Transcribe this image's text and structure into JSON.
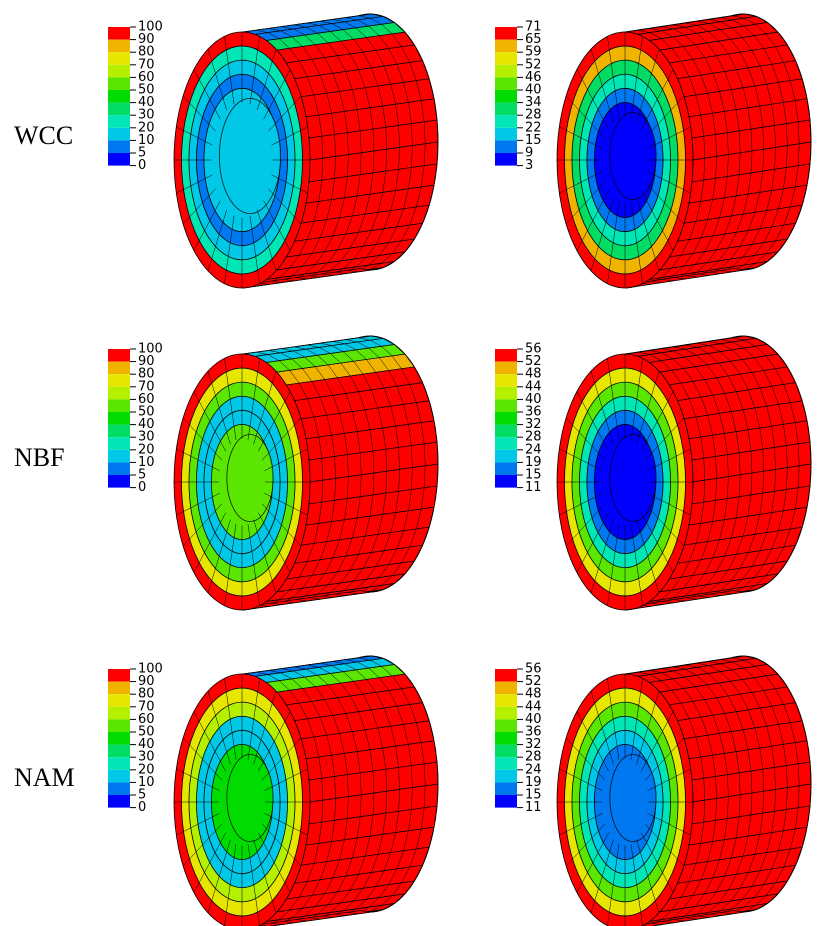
{
  "panels": [
    {
      "label": "WCC",
      "legends": [
        {
          "ticks": [
            100,
            90,
            80,
            70,
            60,
            50,
            40,
            30,
            20,
            10,
            5,
            0
          ]
        },
        {
          "ticks": [
            71,
            65,
            59,
            52,
            46,
            40,
            34,
            28,
            22,
            15,
            9,
            3
          ]
        }
      ]
    },
    {
      "label": "NBF",
      "legends": [
        {
          "ticks": [
            100,
            90,
            80,
            70,
            60,
            50,
            40,
            30,
            20,
            10,
            5,
            0
          ]
        },
        {
          "ticks": [
            56,
            52,
            48,
            44,
            40,
            36,
            32,
            28,
            24,
            19,
            15,
            11
          ]
        }
      ]
    },
    {
      "label": "NAM",
      "legends": [
        {
          "ticks": [
            100,
            90,
            80,
            70,
            60,
            50,
            40,
            30,
            20,
            10,
            5,
            0
          ]
        },
        {
          "ticks": [
            56,
            52,
            48,
            44,
            40,
            36,
            32,
            28,
            24,
            19,
            15,
            11
          ]
        }
      ]
    }
  ],
  "legend_colors": [
    "#ff0000",
    "#f0b400",
    "#e6e600",
    "#b4f000",
    "#5ae600",
    "#00dc00",
    "#00dc64",
    "#00e6b4",
    "#00c8e6",
    "#0078f0",
    "#0000ff"
  ]
}
